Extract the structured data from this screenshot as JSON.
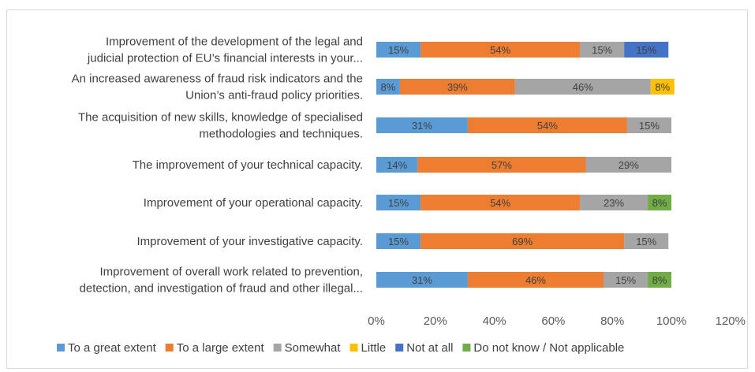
{
  "chart_data": {
    "type": "bar",
    "orientation": "horizontal",
    "stacked": true,
    "categories": [
      [
        "Improvement of the development of the legal and",
        "judicial protection of EU’s financial interests in your..."
      ],
      [
        "An increased awareness of fraud risk indicators and the",
        "Union’s anti-fraud policy priorities."
      ],
      [
        "The acquisition of new skills, knowledge of specialised",
        "methodologies and techniques."
      ],
      [
        "The improvement of your technical capacity."
      ],
      [
        "Improvement of your operational capacity."
      ],
      [
        "Improvement of your investigative capacity."
      ],
      [
        "Improvement of overall work related to prevention,",
        "detection, and investigation of fraud and other illegal..."
      ]
    ],
    "series": [
      {
        "name": "To a great extent",
        "color": "#5B9BD5",
        "values": [
          15,
          8,
          31,
          14,
          15,
          15,
          31
        ]
      },
      {
        "name": "To a large extent",
        "color": "#ED7D31",
        "values": [
          54,
          39,
          54,
          57,
          54,
          69,
          46
        ]
      },
      {
        "name": "Somewhat",
        "color": "#A5A5A5",
        "values": [
          15,
          46,
          15,
          29,
          23,
          15,
          15
        ]
      },
      {
        "name": "Little",
        "color": "#FFC000",
        "values": [
          0,
          8,
          0,
          0,
          0,
          0,
          0
        ]
      },
      {
        "name": "Not at all",
        "color": "#4472C4",
        "values": [
          15,
          0,
          0,
          0,
          0,
          0,
          0
        ]
      },
      {
        "name": "Do not know / Not applicable",
        "color": "#70AD47",
        "values": [
          0,
          0,
          0,
          0,
          8,
          0,
          8
        ]
      }
    ],
    "x_ticks": [
      "0%",
      "20%",
      "40%",
      "60%",
      "80%",
      "100%",
      "120%"
    ],
    "xlim": [
      0,
      120
    ],
    "legend": "bottom",
    "grid": false,
    "title": "",
    "xlabel": "",
    "ylabel": ""
  }
}
